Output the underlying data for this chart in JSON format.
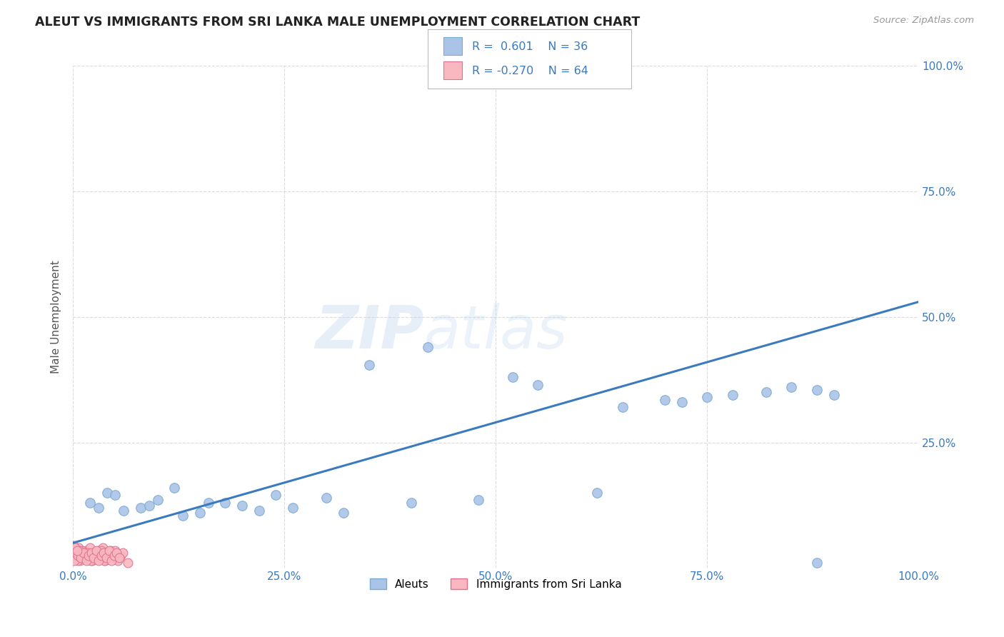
{
  "title": "ALEUT VS IMMIGRANTS FROM SRI LANKA MALE UNEMPLOYMENT CORRELATION CHART",
  "source": "Source: ZipAtlas.com",
  "ylabel": "Male Unemployment",
  "title_color": "#222222",
  "background_color": "#ffffff",
  "grid_color": "#cccccc",
  "watermark_zip": "ZIP",
  "watermark_atlas": "atlas",
  "aleut_color": "#aac4e8",
  "aleut_edge_color": "#7aaad0",
  "sri_lanka_color": "#f9b8c0",
  "sri_lanka_edge_color": "#e07090",
  "line_color": "#3a7abf",
  "tick_color": "#3a7abf",
  "xlim": [
    0,
    100
  ],
  "ylim": [
    0,
    100
  ],
  "xticks": [
    0,
    25,
    50,
    75,
    100
  ],
  "xtick_labels": [
    "0.0%",
    "25.0%",
    "50.0%",
    "75.0%",
    "100.0%"
  ],
  "yticks": [
    0,
    25,
    50,
    75,
    100
  ],
  "ytick_labels_right": [
    "",
    "25.0%",
    "50.0%",
    "75.0%",
    "100.0%"
  ],
  "aleuts_x": [
    2.0,
    4.0,
    5.0,
    8.0,
    10.0,
    12.0,
    15.0,
    18.0,
    20.0,
    24.0,
    30.0,
    35.0,
    40.0,
    42.0,
    48.0,
    52.0,
    55.0,
    62.0,
    65.0,
    70.0,
    72.0,
    75.0,
    78.0,
    82.0,
    85.0,
    88.0,
    90.0,
    3.0,
    6.0,
    9.0,
    13.0,
    16.0,
    22.0,
    26.0,
    32.0,
    88.0
  ],
  "aleuts_y": [
    13.0,
    15.0,
    14.5,
    12.0,
    13.5,
    16.0,
    11.0,
    13.0,
    12.5,
    14.5,
    14.0,
    40.5,
    13.0,
    44.0,
    13.5,
    38.0,
    36.5,
    15.0,
    32.0,
    33.5,
    33.0,
    34.0,
    34.5,
    35.0,
    36.0,
    35.5,
    34.5,
    12.0,
    11.5,
    12.5,
    10.5,
    13.0,
    11.5,
    12.0,
    11.0,
    1.0
  ],
  "sri_lanka_x": [
    0.3,
    0.5,
    0.7,
    0.8,
    1.0,
    1.2,
    1.5,
    1.8,
    2.0,
    2.3,
    2.5,
    2.8,
    3.0,
    3.3,
    3.5,
    3.8,
    4.0,
    4.3,
    4.5,
    4.8,
    0.2,
    0.4,
    0.6,
    0.9,
    1.1,
    1.4,
    1.7,
    2.1,
    2.4,
    2.7,
    3.1,
    3.4,
    3.7,
    4.1,
    4.4,
    4.7,
    5.0,
    5.3,
    5.6,
    5.9,
    0.15,
    0.35,
    0.55,
    0.75,
    0.95,
    1.25,
    1.55,
    1.85,
    2.15,
    2.45,
    2.75,
    3.05,
    3.35,
    3.65,
    3.95,
    4.25,
    4.55,
    4.85,
    5.15,
    5.45,
    0.1,
    0.25,
    0.45,
    6.5
  ],
  "sri_lanka_y": [
    3.5,
    2.5,
    4.0,
    1.5,
    3.0,
    2.0,
    3.5,
    2.5,
    4.0,
    1.5,
    3.0,
    2.5,
    3.5,
    2.0,
    4.0,
    1.5,
    3.0,
    2.5,
    3.5,
    2.0,
    2.0,
    3.5,
    1.5,
    2.5,
    3.5,
    2.0,
    3.0,
    1.5,
    2.5,
    3.0,
    2.0,
    3.5,
    1.5,
    2.5,
    3.0,
    2.0,
    3.5,
    1.5,
    2.5,
    3.0,
    1.5,
    3.0,
    2.5,
    3.5,
    2.0,
    3.0,
    1.5,
    2.5,
    3.0,
    2.0,
    3.5,
    1.5,
    2.5,
    3.0,
    2.0,
    3.5,
    1.5,
    2.5,
    3.0,
    2.0,
    4.5,
    4.0,
    3.5,
    1.0
  ],
  "line_x": [
    0,
    100
  ],
  "line_y": [
    5.0,
    53.0
  ]
}
